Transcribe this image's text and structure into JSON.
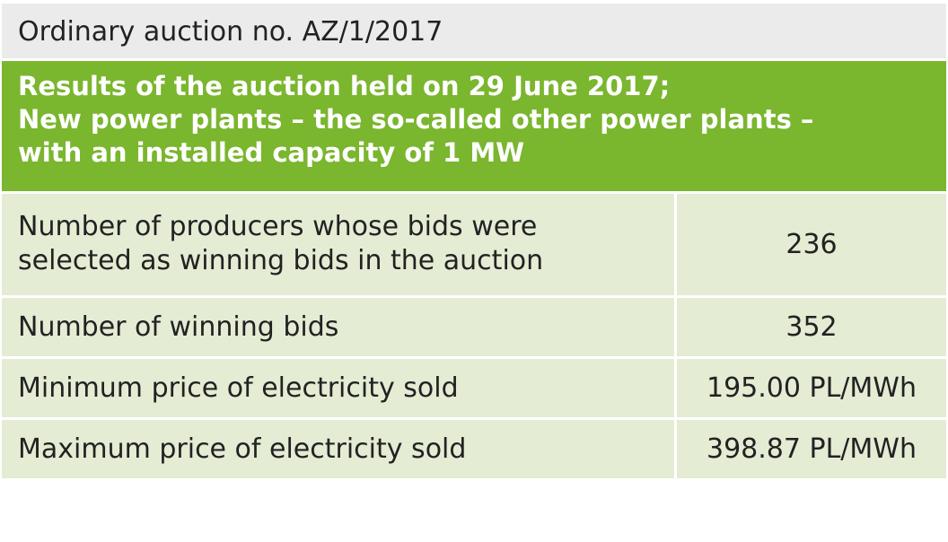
{
  "header": {
    "title": "Ordinary auction no. AZ/1/2017"
  },
  "heading": {
    "lines": [
      "Results of the auction held on 29 June 2017;",
      "New power plants – the so-called other power plants –",
      "with an installed capacity of 1 MW"
    ]
  },
  "table": {
    "rows": [
      [
        "Number of producers whose bids were selected as winning bids in the auction",
        "236"
      ],
      [
        "Number of winning bids",
        "352"
      ],
      [
        "Minimum price of electricity sold",
        "195.00 PL/MWh"
      ],
      [
        "Maximum price of electricity sold",
        "398.87 PL/MWh"
      ]
    ]
  }
}
